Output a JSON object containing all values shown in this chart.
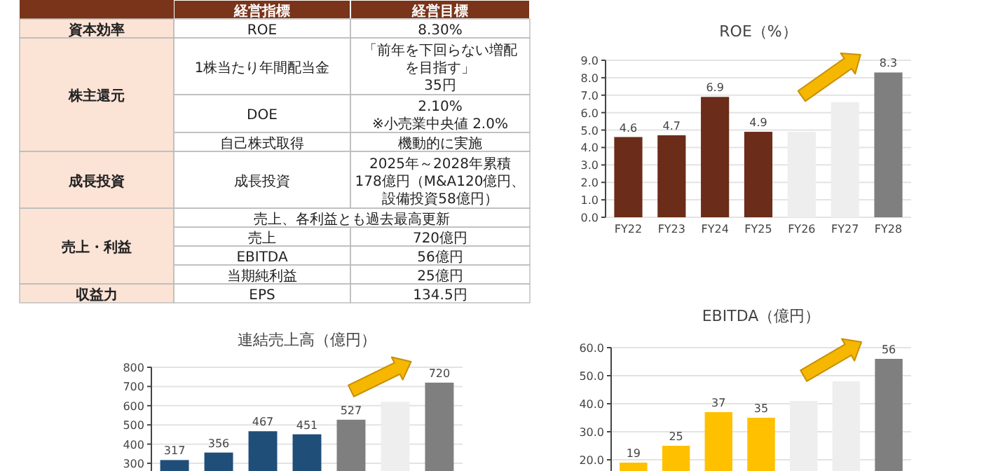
{
  "chart_data": [
    {
      "type": "other",
      "categories": [
        "経営指標",
        "経営目標"
      ],
      "annotations": [
        "資本効率",
        "ROE",
        "8.30%",
        "株主還元",
        "1株当たり年間配当金",
        "「前年を下回らない増配",
        "を目指す」",
        "35円",
        "DOE",
        "2.10%",
        "※小売業中央値 2.0%",
        "自己株式取得",
        "機動的に実施",
        "成長投資",
        "成長投資",
        "2025年～2028年累積",
        "178億円（M&A120億円、",
        "設備投資58億円）",
        "売上・利益",
        "売上、各利益とも過去最高更新",
        "売上",
        "720億円",
        "EBITDA",
        "56億円",
        "当期純利益",
        "25億円",
        "収益力",
        "EPS",
        "134.5円"
      ]
    },
    {
      "type": "bar",
      "title": "ROE（%）",
      "categories": [
        "FY22",
        "FY23",
        "FY24",
        "FY25",
        "FY26",
        "FY27",
        "FY28"
      ],
      "values": [
        4.6,
        4.7,
        6.9,
        4.9,
        4.9,
        6.6,
        8.3
      ],
      "colors": [
        "#6b2c19",
        "#6b2c19",
        "#6b2c19",
        "#6b2c19",
        "#eeeeee",
        "#eeeeee",
        "#7f7f7f"
      ],
      "value_labels": [
        "4.6",
        "4.7",
        "6.9",
        "4.9",
        null,
        null,
        "8.3"
      ],
      "ylim": [
        0,
        9
      ],
      "yticks": [
        {
          "value": 0,
          "label": "0.0"
        },
        {
          "value": 1,
          "label": "1.0"
        },
        {
          "value": 2,
          "label": "2.0"
        },
        {
          "value": 3,
          "label": "3.0"
        },
        {
          "value": 4,
          "label": "4.0"
        },
        {
          "value": 5,
          "label": "5.0"
        },
        {
          "value": 6,
          "label": "6.0"
        },
        {
          "value": 7,
          "label": "7.0"
        },
        {
          "value": 8,
          "label": "8.0"
        },
        {
          "value": 9,
          "label": "9.0"
        }
      ],
      "grid": "y"
    },
    {
      "type": "bar",
      "title": "連結売上高（億円）",
      "categories": [
        null,
        null,
        null,
        null,
        null,
        null,
        null
      ],
      "values": [
        317,
        356,
        467,
        451,
        527,
        620,
        720
      ],
      "colors": [
        "#1f4e79",
        "#1f4e79",
        "#1f4e79",
        "#1f4e79",
        "#7f7f7f",
        "#eeeeee",
        "#7f7f7f"
      ],
      "value_labels": [
        "317",
        "356",
        "467",
        "451",
        "527",
        null,
        "720"
      ],
      "ylim": [
        260,
        800
      ],
      "yticks": [
        300,
        400,
        500,
        600,
        700,
        800
      ],
      "grid": "y"
    },
    {
      "type": "bar",
      "title": "EBITDA（億円）",
      "categories": [
        null,
        null,
        null,
        null,
        null,
        null,
        null
      ],
      "values": [
        19,
        25,
        37,
        35,
        41,
        48,
        56
      ],
      "colors": [
        "#ffc000",
        "#ffc000",
        "#ffc000",
        "#ffc000",
        "#eeeeee",
        "#eeeeee",
        "#7f7f7f"
      ],
      "value_labels": [
        "19",
        "25",
        "37",
        "35",
        null,
        null,
        "56"
      ],
      "ylim": [
        16,
        60
      ],
      "yticks": [
        {
          "value": 20,
          "label": "20.0"
        },
        {
          "value": 30,
          "label": "30.0"
        },
        {
          "value": 40,
          "label": "40.0"
        },
        {
          "value": 50,
          "label": "50.0"
        },
        {
          "value": 60,
          "label": "60.0"
        }
      ],
      "grid": "y"
    }
  ]
}
